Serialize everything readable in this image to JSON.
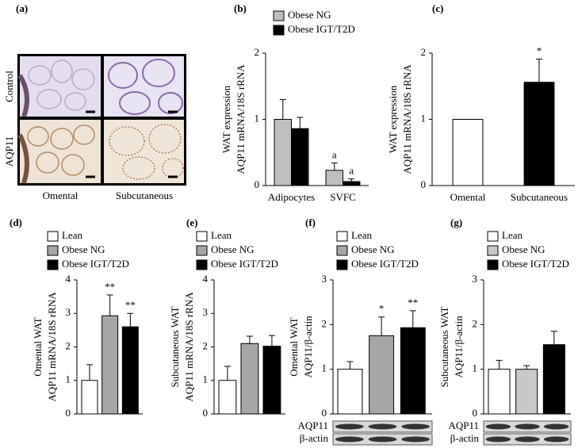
{
  "image_panel": {
    "label": "(a)",
    "rows": [
      "Control",
      "AQP11"
    ],
    "columns": [
      "Omental",
      "Subcutaneous"
    ]
  },
  "chart_data": [
    {
      "type": "bar",
      "label": "(b)",
      "y_label": [
        "WAT expression",
        "AQP11 mRNA/18S rRNA"
      ],
      "categories": [
        "Adipocytes",
        "SVFC"
      ],
      "series": [
        {
          "name": "Obese NG",
          "color": "#bfbfbf",
          "values": [
            1.0,
            0.23
          ],
          "errors": [
            0.3,
            0.11
          ],
          "annotations": [
            null,
            "a"
          ]
        },
        {
          "name": "Obese IGT/T2D",
          "color": "#000000",
          "values": [
            0.86,
            0.06
          ],
          "errors": [
            0.17,
            0.04
          ],
          "annotations": [
            null,
            "a"
          ]
        }
      ],
      "ylim": [
        0,
        2
      ],
      "yticks": [
        0,
        1,
        2
      ]
    },
    {
      "type": "bar",
      "label": "(c)",
      "y_label": [
        "WAT expression",
        "AQP11 mRNA/18S rRNA"
      ],
      "categories": [
        "Omental",
        "Subcutaneous"
      ],
      "values": [
        1.0,
        1.56
      ],
      "errors": [
        null,
        0.35
      ],
      "colors": [
        "#ffffff",
        "#000000"
      ],
      "annotations": [
        null,
        "*"
      ],
      "ylim": [
        0,
        2
      ],
      "yticks": [
        0,
        1,
        2
      ]
    },
    {
      "type": "bar",
      "label": "(d)",
      "y_label": [
        "Omental WAT",
        "AQP11 mRNA/18S rRNA"
      ],
      "series": [
        {
          "name": "Lean",
          "color": "#ffffff",
          "values": [
            1.0
          ],
          "errors": [
            0.47
          ],
          "annotations": [
            null
          ]
        },
        {
          "name": "Obese NG",
          "color": "#a6a6a6",
          "values": [
            2.93
          ],
          "errors": [
            0.62
          ],
          "annotations": [
            "**"
          ]
        },
        {
          "name": "Obese IGT/T2D",
          "color": "#000000",
          "values": [
            2.6
          ],
          "errors": [
            0.4
          ],
          "annotations": [
            "**"
          ]
        }
      ],
      "ylim": [
        0,
        4
      ],
      "yticks": [
        0,
        1,
        2,
        3,
        4
      ]
    },
    {
      "type": "bar",
      "label": "(e)",
      "y_label": [
        "Subcutaneous WAT",
        "AQP11 mRNA/18S rRNA"
      ],
      "series": [
        {
          "name": "Lean",
          "color": "#ffffff",
          "values": [
            1.0
          ],
          "errors": [
            0.42
          ]
        },
        {
          "name": "Obese NG",
          "color": "#a6a6a6",
          "values": [
            2.1
          ],
          "errors": [
            0.22
          ]
        },
        {
          "name": "Obese IGT/T2D",
          "color": "#000000",
          "values": [
            2.02
          ],
          "errors": [
            0.32
          ]
        }
      ],
      "ylim": [
        0,
        4
      ],
      "yticks": [
        0,
        1,
        2,
        3,
        4
      ]
    },
    {
      "type": "bar",
      "label": "(f)",
      "y_label": [
        "Omental WAT",
        "AQP11/β-actin"
      ],
      "series": [
        {
          "name": "Lean",
          "color": "#ffffff",
          "values": [
            1.0
          ],
          "errors": [
            0.17
          ],
          "annotations": [
            null
          ]
        },
        {
          "name": "Obese NG",
          "color": "#a6a6a6",
          "values": [
            1.75
          ],
          "errors": [
            0.42
          ],
          "annotations": [
            "*"
          ]
        },
        {
          "name": "Obese IGT/T2D",
          "color": "#000000",
          "values": [
            1.93
          ],
          "errors": [
            0.38
          ],
          "annotations": [
            "**"
          ]
        }
      ],
      "ylim": [
        0,
        3
      ],
      "yticks": [
        0,
        1,
        2,
        3
      ],
      "blot_labels": [
        "AQP11",
        "β-actin"
      ]
    },
    {
      "type": "bar",
      "label": "(g)",
      "y_label": [
        "Subcutaneous WAT",
        "AQP11/β-actin"
      ],
      "series": [
        {
          "name": "Lean",
          "color": "#ffffff",
          "values": [
            1.0
          ],
          "errors": [
            0.2
          ]
        },
        {
          "name": "Obese NG",
          "color": "#c8c8c8",
          "values": [
            1.0
          ],
          "errors": [
            0.08
          ]
        },
        {
          "name": "Obese IGT/T2D",
          "color": "#000000",
          "values": [
            1.55
          ],
          "errors": [
            0.3
          ]
        }
      ],
      "ylim": [
        0,
        3
      ],
      "yticks": [
        0,
        1,
        2,
        3
      ],
      "blot_labels": [
        "AQP11",
        "β-actin"
      ]
    }
  ]
}
